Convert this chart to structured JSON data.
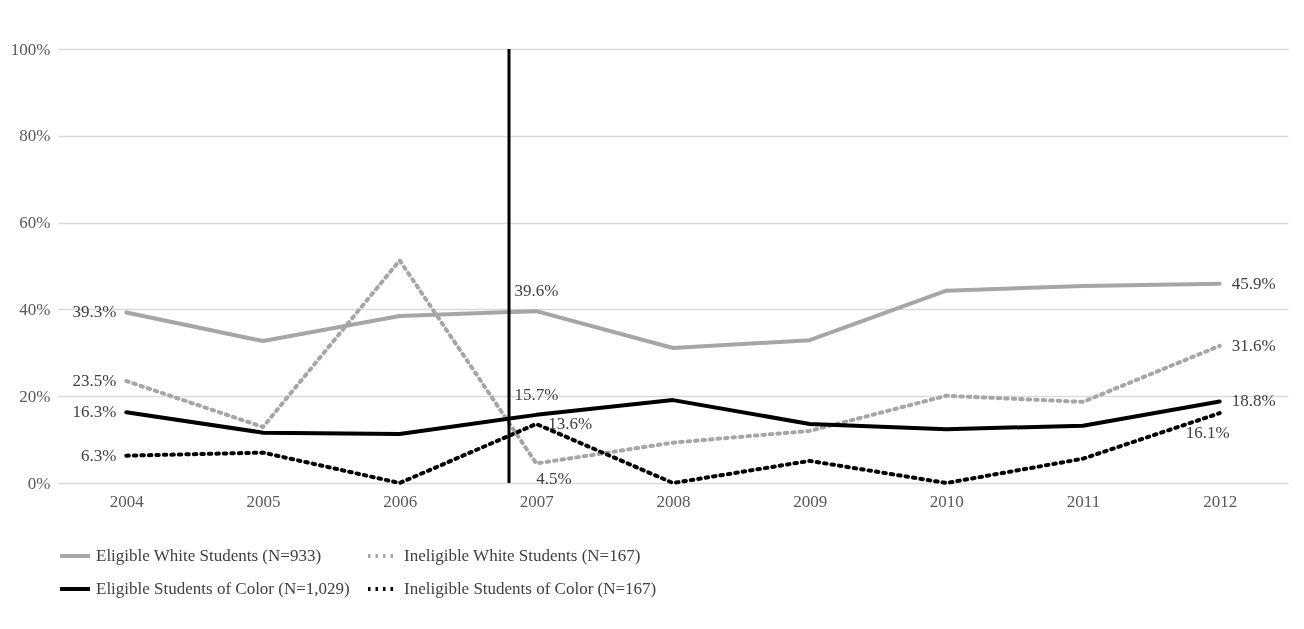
{
  "chart_data": {
    "type": "line",
    "x": [
      2004,
      2005,
      2006,
      2007,
      2008,
      2009,
      2010,
      2011,
      2012
    ],
    "xlim": [
      2003.5,
      2012.5
    ],
    "xticks": [
      2004,
      2005,
      2006,
      2007,
      2008,
      2009,
      2010,
      2011,
      2012
    ],
    "ylim": [
      0,
      100
    ],
    "yticks": [
      {
        "value": 0,
        "label": "0%"
      },
      {
        "value": 20,
        "label": "20%"
      },
      {
        "value": 40,
        "label": "40%"
      },
      {
        "value": 60,
        "label": "60%"
      },
      {
        "value": 80,
        "label": "80%"
      },
      {
        "value": 100,
        "label": "100%"
      }
    ],
    "grid": "y",
    "legend": "bottom",
    "marker": "none",
    "ref_lines": [
      {
        "axis": "x",
        "value": 2006.8,
        "color": "#000000"
      }
    ],
    "series": [
      {
        "name": "Eligible White Students (N=933)",
        "color": "#a6a6a6",
        "line_style": "solid",
        "values": [
          39.3,
          32.7,
          38.5,
          39.6,
          31.1,
          32.9,
          44.3,
          45.4,
          45.9
        ],
        "value_labels": [
          "39.3%",
          null,
          null,
          "39.6%",
          null,
          null,
          null,
          null,
          "45.9%"
        ]
      },
      {
        "name": "Ineligible White Students (N=167)",
        "color": "#a6a6a6",
        "line_style": "dotted",
        "values": [
          23.5,
          12.9,
          51.3,
          4.5,
          9.3,
          12.0,
          20.1,
          18.7,
          31.6
        ],
        "value_labels": [
          "23.5%",
          null,
          null,
          "4.5%",
          null,
          null,
          null,
          null,
          "31.6%"
        ]
      },
      {
        "name": "Eligible Students of Color (N=1,029)",
        "color": "#000000",
        "line_style": "solid",
        "values": [
          16.3,
          11.6,
          11.3,
          15.7,
          19.1,
          13.6,
          12.4,
          13.2,
          18.8
        ],
        "value_labels": [
          "16.3%",
          null,
          null,
          "15.7%",
          null,
          null,
          null,
          null,
          "18.8%"
        ]
      },
      {
        "name": "Ineligible Students of Color (N=167)",
        "color": "#000000",
        "line_style": "dotted",
        "values": [
          6.3,
          7.0,
          0,
          13.6,
          0,
          5.1,
          0,
          5.6,
          16.1
        ],
        "value_labels": [
          "6.3%",
          null,
          null,
          "13.6%",
          null,
          null,
          null,
          null,
          "16.1%"
        ]
      }
    ]
  }
}
